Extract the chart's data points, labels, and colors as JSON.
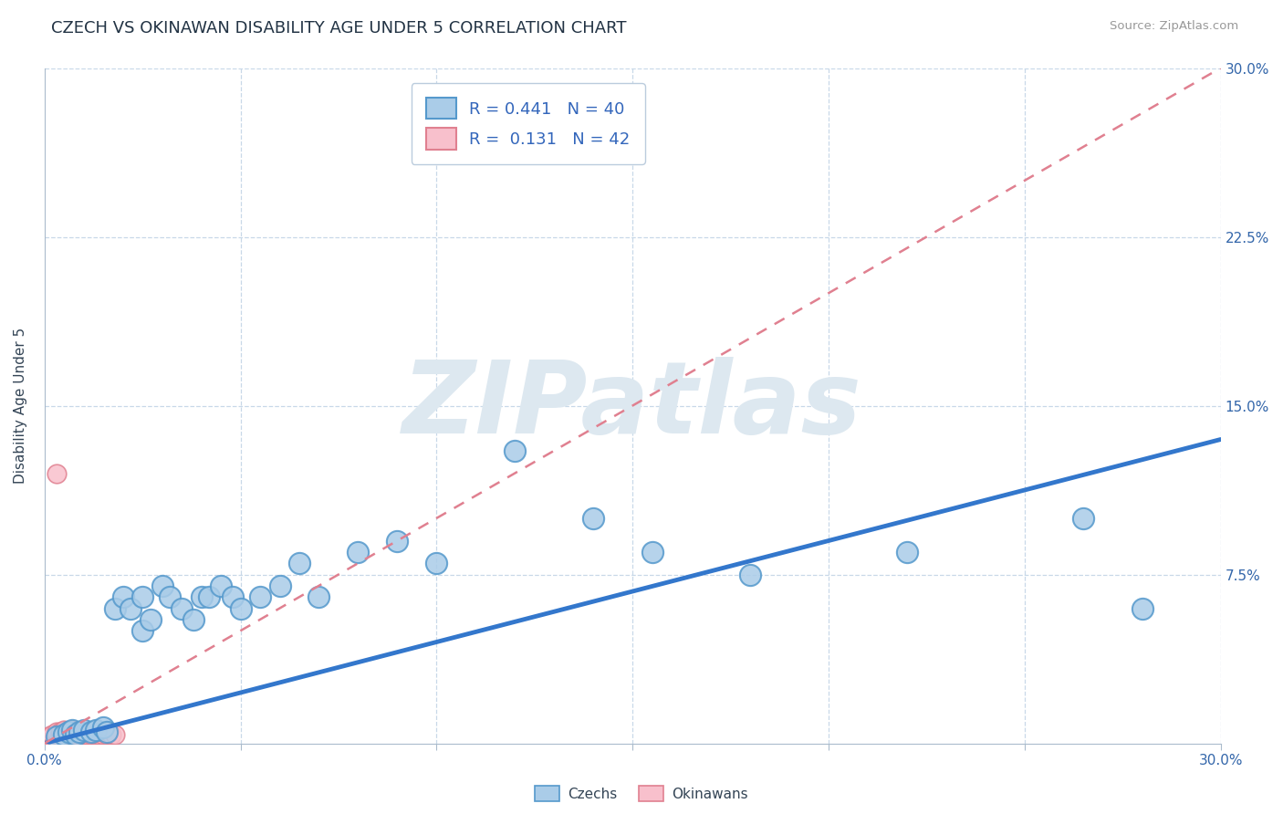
{
  "title": "CZECH VS OKINAWAN DISABILITY AGE UNDER 5 CORRELATION CHART",
  "source": "Source: ZipAtlas.com",
  "ylabel": "Disability Age Under 5",
  "xlim": [
    0.0,
    0.3
  ],
  "ylim": [
    0.0,
    0.3
  ],
  "xticks": [
    0.0,
    0.05,
    0.1,
    0.15,
    0.2,
    0.25,
    0.3
  ],
  "yticks": [
    0.0,
    0.075,
    0.15,
    0.225,
    0.3
  ],
  "xticklabels": [
    "0.0%",
    "",
    "",
    "",
    "",
    "",
    "30.0%"
  ],
  "right_yticklabels": [
    "",
    "7.5%",
    "15.0%",
    "22.5%",
    "30.0%"
  ],
  "czech_R": 0.441,
  "czech_N": 40,
  "okinawan_R": 0.131,
  "okinawan_N": 42,
  "czech_color": "#aacce8",
  "czech_edge_color": "#5599cc",
  "czech_line_color": "#3377cc",
  "okinawan_color": "#f8c0cc",
  "okinawan_edge_color": "#e08090",
  "okinawan_line_color": "#e08090",
  "background_color": "#ffffff",
  "grid_color": "#c8d8e8",
  "watermark": "ZIPatlas",
  "watermark_color": "#dde8f0",
  "legend_label_czech": "Czechs",
  "legend_label_okinawan": "Okinawans",
  "title_fontsize": 13,
  "axis_label_fontsize": 11,
  "tick_fontsize": 11,
  "legend_fontsize": 13,
  "czech_x": [
    0.003,
    0.005,
    0.006,
    0.007,
    0.008,
    0.009,
    0.01,
    0.012,
    0.013,
    0.015,
    0.016,
    0.018,
    0.02,
    0.022,
    0.025,
    0.025,
    0.027,
    0.03,
    0.032,
    0.035,
    0.038,
    0.04,
    0.042,
    0.045,
    0.048,
    0.05,
    0.055,
    0.06,
    0.065,
    0.07,
    0.08,
    0.09,
    0.1,
    0.12,
    0.14,
    0.155,
    0.18,
    0.22,
    0.265,
    0.28
  ],
  "czech_y": [
    0.003,
    0.004,
    0.005,
    0.006,
    0.004,
    0.005,
    0.006,
    0.005,
    0.006,
    0.007,
    0.005,
    0.06,
    0.065,
    0.06,
    0.065,
    0.05,
    0.055,
    0.07,
    0.065,
    0.06,
    0.055,
    0.065,
    0.065,
    0.07,
    0.065,
    0.06,
    0.065,
    0.07,
    0.08,
    0.065,
    0.085,
    0.09,
    0.08,
    0.13,
    0.1,
    0.085,
    0.075,
    0.085,
    0.1,
    0.06
  ],
  "okinawan_x": [
    0.001,
    0.001,
    0.002,
    0.002,
    0.002,
    0.003,
    0.003,
    0.003,
    0.003,
    0.004,
    0.004,
    0.004,
    0.005,
    0.005,
    0.005,
    0.005,
    0.006,
    0.006,
    0.006,
    0.007,
    0.007,
    0.007,
    0.008,
    0.008,
    0.009,
    0.009,
    0.01,
    0.01,
    0.011,
    0.011,
    0.012,
    0.012,
    0.013,
    0.013,
    0.014,
    0.015,
    0.015,
    0.016,
    0.016,
    0.017,
    0.018,
    0.003
  ],
  "okinawan_y": [
    0.002,
    0.003,
    0.002,
    0.003,
    0.004,
    0.002,
    0.003,
    0.004,
    0.005,
    0.003,
    0.004,
    0.005,
    0.003,
    0.004,
    0.005,
    0.006,
    0.003,
    0.004,
    0.005,
    0.004,
    0.005,
    0.006,
    0.004,
    0.005,
    0.004,
    0.005,
    0.004,
    0.005,
    0.004,
    0.005,
    0.004,
    0.005,
    0.004,
    0.005,
    0.004,
    0.004,
    0.005,
    0.004,
    0.005,
    0.004,
    0.004,
    0.12
  ],
  "czech_trend_x": [
    0.0,
    0.3
  ],
  "czech_trend_y": [
    0.0,
    0.135
  ],
  "okinawan_trend_x": [
    0.0,
    0.3
  ],
  "okinawan_trend_y": [
    0.0,
    0.3
  ]
}
